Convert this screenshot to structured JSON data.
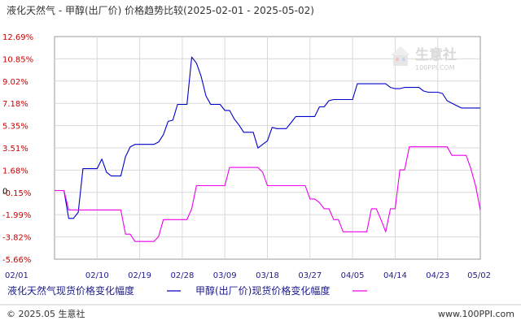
{
  "chart_data": {
    "type": "line",
    "title": "液化天然气 - 甲醇(出厂价) 价格趋势比较(2025-02-01 - 2025-05-02)",
    "x_tick_labels": [
      "02/01",
      "02/10",
      "02/19",
      "02/28",
      "03/09",
      "03/18",
      "03/27",
      "04/05",
      "04/14",
      "04/23",
      "05/02"
    ],
    "y_tick_labels": [
      "12.69%",
      "10.85%",
      "9.02%",
      "7.18%",
      "5.35%",
      "3.51%",
      "1.68%",
      "-0.15%",
      "-1.99%",
      "-3.82%",
      "-5.66%"
    ],
    "y_zero_label": "0",
    "xlim": [
      "2025-02-01",
      "2025-05-02"
    ],
    "ylim": [
      -5.66,
      12.69
    ],
    "grid": true,
    "legend_position": "bottom",
    "series": [
      {
        "name": "液化天然气现货价格变化幅度",
        "color": "#0000cc",
        "points": [
          [
            "2025-02-01",
            0.0
          ],
          [
            "2025-02-02",
            0.0
          ],
          [
            "2025-02-03",
            0.0
          ],
          [
            "2025-02-04",
            -2.3
          ],
          [
            "2025-02-05",
            -2.3
          ],
          [
            "2025-02-06",
            -1.8
          ],
          [
            "2025-02-07",
            1.8
          ],
          [
            "2025-02-08",
            1.8
          ],
          [
            "2025-02-09",
            1.8
          ],
          [
            "2025-02-10",
            1.8
          ],
          [
            "2025-02-11",
            2.6
          ],
          [
            "2025-02-12",
            1.5
          ],
          [
            "2025-02-13",
            1.2
          ],
          [
            "2025-02-14",
            1.2
          ],
          [
            "2025-02-15",
            1.2
          ],
          [
            "2025-02-16",
            2.8
          ],
          [
            "2025-02-17",
            3.6
          ],
          [
            "2025-02-18",
            3.8
          ],
          [
            "2025-02-19",
            3.8
          ],
          [
            "2025-02-20",
            3.8
          ],
          [
            "2025-02-21",
            3.8
          ],
          [
            "2025-02-22",
            3.8
          ],
          [
            "2025-02-23",
            4.0
          ],
          [
            "2025-02-24",
            4.6
          ],
          [
            "2025-02-25",
            5.7
          ],
          [
            "2025-02-26",
            5.8
          ],
          [
            "2025-02-27",
            7.1
          ],
          [
            "2025-02-28",
            7.1
          ],
          [
            "2025-03-01",
            7.1
          ],
          [
            "2025-03-02",
            11.0
          ],
          [
            "2025-03-03",
            10.5
          ],
          [
            "2025-03-04",
            9.4
          ],
          [
            "2025-03-05",
            7.8
          ],
          [
            "2025-03-06",
            7.1
          ],
          [
            "2025-03-07",
            7.1
          ],
          [
            "2025-03-08",
            7.1
          ],
          [
            "2025-03-09",
            6.6
          ],
          [
            "2025-03-10",
            6.6
          ],
          [
            "2025-03-11",
            5.9
          ],
          [
            "2025-03-12",
            5.4
          ],
          [
            "2025-03-13",
            4.8
          ],
          [
            "2025-03-14",
            4.8
          ],
          [
            "2025-03-15",
            4.8
          ],
          [
            "2025-03-16",
            3.5
          ],
          [
            "2025-03-17",
            3.8
          ],
          [
            "2025-03-18",
            4.1
          ],
          [
            "2025-03-19",
            5.2
          ],
          [
            "2025-03-20",
            5.1
          ],
          [
            "2025-03-21",
            5.1
          ],
          [
            "2025-03-22",
            5.1
          ],
          [
            "2025-03-23",
            5.6
          ],
          [
            "2025-03-24",
            6.1
          ],
          [
            "2025-03-25",
            6.1
          ],
          [
            "2025-03-26",
            6.1
          ],
          [
            "2025-03-27",
            6.1
          ],
          [
            "2025-03-28",
            6.1
          ],
          [
            "2025-03-29",
            6.9
          ],
          [
            "2025-03-30",
            6.9
          ],
          [
            "2025-03-31",
            7.4
          ],
          [
            "2025-04-01",
            7.5
          ],
          [
            "2025-04-02",
            7.5
          ],
          [
            "2025-04-03",
            7.5
          ],
          [
            "2025-04-04",
            7.5
          ],
          [
            "2025-04-05",
            7.5
          ],
          [
            "2025-04-06",
            8.8
          ],
          [
            "2025-04-07",
            8.8
          ],
          [
            "2025-04-08",
            8.8
          ],
          [
            "2025-04-09",
            8.8
          ],
          [
            "2025-04-10",
            8.8
          ],
          [
            "2025-04-11",
            8.8
          ],
          [
            "2025-04-12",
            8.8
          ],
          [
            "2025-04-13",
            8.5
          ],
          [
            "2025-04-14",
            8.4
          ],
          [
            "2025-04-15",
            8.4
          ],
          [
            "2025-04-16",
            8.5
          ],
          [
            "2025-04-17",
            8.5
          ],
          [
            "2025-04-18",
            8.5
          ],
          [
            "2025-04-19",
            8.5
          ],
          [
            "2025-04-20",
            8.2
          ],
          [
            "2025-04-21",
            8.1
          ],
          [
            "2025-04-22",
            8.1
          ],
          [
            "2025-04-23",
            8.1
          ],
          [
            "2025-04-24",
            8.0
          ],
          [
            "2025-04-25",
            7.4
          ],
          [
            "2025-04-26",
            7.2
          ],
          [
            "2025-04-27",
            7.0
          ],
          [
            "2025-04-28",
            6.8
          ],
          [
            "2025-04-29",
            6.8
          ],
          [
            "2025-04-30",
            6.8
          ],
          [
            "2025-05-01",
            6.8
          ],
          [
            "2025-05-02",
            6.8
          ]
        ]
      },
      {
        "name": "甲醇(出厂价)现货价格变化幅度",
        "color": "#ee00ee",
        "points": [
          [
            "2025-02-01",
            0.0
          ],
          [
            "2025-02-02",
            0.0
          ],
          [
            "2025-02-03",
            0.0
          ],
          [
            "2025-02-04",
            -1.6
          ],
          [
            "2025-02-05",
            -1.6
          ],
          [
            "2025-02-06",
            -1.6
          ],
          [
            "2025-02-07",
            -1.6
          ],
          [
            "2025-02-08",
            -1.6
          ],
          [
            "2025-02-09",
            -1.6
          ],
          [
            "2025-02-10",
            -1.6
          ],
          [
            "2025-02-11",
            -1.6
          ],
          [
            "2025-02-12",
            -1.6
          ],
          [
            "2025-02-13",
            -1.6
          ],
          [
            "2025-02-14",
            -1.6
          ],
          [
            "2025-02-15",
            -1.6
          ],
          [
            "2025-02-16",
            -3.6
          ],
          [
            "2025-02-17",
            -3.6
          ],
          [
            "2025-02-18",
            -4.2
          ],
          [
            "2025-02-19",
            -4.2
          ],
          [
            "2025-02-20",
            -4.2
          ],
          [
            "2025-02-21",
            -4.2
          ],
          [
            "2025-02-22",
            -4.2
          ],
          [
            "2025-02-23",
            -3.8
          ],
          [
            "2025-02-24",
            -2.4
          ],
          [
            "2025-02-25",
            -2.4
          ],
          [
            "2025-02-26",
            -2.4
          ],
          [
            "2025-02-27",
            -2.4
          ],
          [
            "2025-02-28",
            -2.4
          ],
          [
            "2025-03-01",
            -2.4
          ],
          [
            "2025-03-02",
            -1.5
          ],
          [
            "2025-03-03",
            0.4
          ],
          [
            "2025-03-04",
            0.4
          ],
          [
            "2025-03-05",
            0.4
          ],
          [
            "2025-03-06",
            0.4
          ],
          [
            "2025-03-07",
            0.4
          ],
          [
            "2025-03-08",
            0.4
          ],
          [
            "2025-03-09",
            0.4
          ],
          [
            "2025-03-10",
            1.9
          ],
          [
            "2025-03-11",
            1.9
          ],
          [
            "2025-03-12",
            1.9
          ],
          [
            "2025-03-13",
            1.9
          ],
          [
            "2025-03-14",
            1.9
          ],
          [
            "2025-03-15",
            1.9
          ],
          [
            "2025-03-16",
            1.9
          ],
          [
            "2025-03-17",
            1.5
          ],
          [
            "2025-03-18",
            0.4
          ],
          [
            "2025-03-19",
            0.4
          ],
          [
            "2025-03-20",
            0.4
          ],
          [
            "2025-03-21",
            0.4
          ],
          [
            "2025-03-22",
            0.4
          ],
          [
            "2025-03-23",
            0.4
          ],
          [
            "2025-03-24",
            0.4
          ],
          [
            "2025-03-25",
            0.4
          ],
          [
            "2025-03-26",
            0.4
          ],
          [
            "2025-03-27",
            -0.7
          ],
          [
            "2025-03-28",
            -0.7
          ],
          [
            "2025-03-29",
            -1.0
          ],
          [
            "2025-03-30",
            -1.5
          ],
          [
            "2025-03-31",
            -1.5
          ],
          [
            "2025-04-01",
            -2.4
          ],
          [
            "2025-04-02",
            -2.4
          ],
          [
            "2025-04-03",
            -3.4
          ],
          [
            "2025-04-04",
            -3.4
          ],
          [
            "2025-04-05",
            -3.4
          ],
          [
            "2025-04-06",
            -3.4
          ],
          [
            "2025-04-07",
            -3.4
          ],
          [
            "2025-04-08",
            -3.4
          ],
          [
            "2025-04-09",
            -1.5
          ],
          [
            "2025-04-10",
            -1.5
          ],
          [
            "2025-04-11",
            -2.4
          ],
          [
            "2025-04-12",
            -3.4
          ],
          [
            "2025-04-13",
            -1.5
          ],
          [
            "2025-04-14",
            -1.5
          ],
          [
            "2025-04-15",
            1.7
          ],
          [
            "2025-04-16",
            1.7
          ],
          [
            "2025-04-17",
            3.6
          ],
          [
            "2025-04-18",
            3.6
          ],
          [
            "2025-04-19",
            3.6
          ],
          [
            "2025-04-20",
            3.6
          ],
          [
            "2025-04-21",
            3.6
          ],
          [
            "2025-04-22",
            3.6
          ],
          [
            "2025-04-23",
            3.6
          ],
          [
            "2025-04-24",
            3.6
          ],
          [
            "2025-04-25",
            3.6
          ],
          [
            "2025-04-26",
            2.9
          ],
          [
            "2025-04-27",
            2.9
          ],
          [
            "2025-04-28",
            2.9
          ],
          [
            "2025-04-29",
            2.9
          ],
          [
            "2025-04-30",
            1.8
          ],
          [
            "2025-05-01",
            0.4
          ],
          [
            "2025-05-02",
            -1.6
          ],
          [
            "2025-05-03",
            -1.6
          ]
        ]
      }
    ]
  },
  "legend": {
    "lng_label": "液化天然气现货价格变化幅度",
    "methanol_label": "甲醇(出厂价)现货价格变化幅度"
  },
  "watermark": {
    "brand": "生意社",
    "url": "100PPI.COM"
  },
  "footer": {
    "copyright": "© 2025.05 生意社",
    "site": "www.100PPI.com"
  }
}
